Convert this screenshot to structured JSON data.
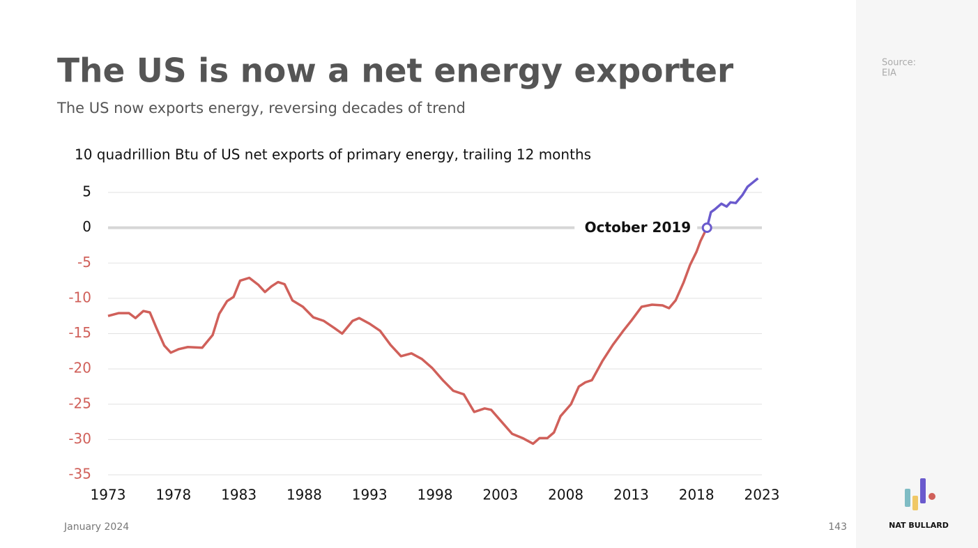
{
  "header": {
    "title": "The US is now a net energy exporter",
    "subtitle": "The US now exports energy, reversing decades of trend",
    "source_label": "Source:",
    "source": "EIA"
  },
  "footer": {
    "date": "January 2024",
    "page": "143",
    "brand": "NAT BULLARD"
  },
  "chart_data": {
    "type": "line",
    "title": "10 quadrillion Btu of US net exports of primary energy, trailing 12 months",
    "xlim": [
      1973,
      2023
    ],
    "xticks": [
      1973,
      1978,
      1983,
      1988,
      1993,
      1998,
      2003,
      2008,
      2013,
      2018,
      2023
    ],
    "ylim": [
      -35,
      5
    ],
    "yticks": [
      -35,
      -30,
      -25,
      -20,
      -15,
      -10,
      -5,
      0,
      5
    ],
    "grid": true,
    "negative_tick_color": "#d0605a",
    "series": [
      {
        "color": "#d0605a",
        "x": [
          1973,
          1973.8,
          1974.6,
          1975.1,
          1975.7,
          1976.2,
          1976.7,
          1977.3,
          1977.8,
          1978.4,
          1979.1,
          1980.2,
          1981,
          1981.5,
          1982.1,
          1982.6,
          1983.1,
          1983.8,
          1984.5,
          1985,
          1985.5,
          1986,
          1986.5,
          1987.1,
          1987.9,
          1988.7,
          1989.5,
          1990.3,
          1990.9,
          1991.7,
          1992.2,
          1993,
          1993.8,
          1994.6,
          1995.4,
          1996.2,
          1997,
          1997.8,
          1998.6,
          1999.4,
          2000.2,
          2001,
          2001.8,
          2002.3,
          2003.1,
          2003.9,
          2004.7,
          2005.5,
          2006,
          2006.6,
          2007.1,
          2007.6,
          2008.4,
          2009,
          2009.5,
          2010,
          2010.8,
          2011.6,
          2012.4,
          2013,
          2013.8,
          2014.6,
          2015.4,
          2015.9,
          2016.4,
          2017,
          2017.5,
          2018,
          2018.3,
          2018.8
        ],
        "values": [
          -12.5,
          -12.1,
          -12.1,
          -12.8,
          -11.8,
          -12,
          -14.2,
          -16.7,
          -17.7,
          -17.2,
          -16.9,
          -17,
          -15.2,
          -12.2,
          -10.4,
          -9.8,
          -7.5,
          -7.1,
          -8.1,
          -9.1,
          -8.3,
          -7.7,
          -8,
          -10.3,
          -11.2,
          -12.7,
          -13.2,
          -14.2,
          -15,
          -13.2,
          -12.8,
          -13.6,
          -14.6,
          -16.6,
          -18.2,
          -17.8,
          -18.6,
          -19.9,
          -21.6,
          -23.1,
          -23.6,
          -26.1,
          -25.6,
          -25.8,
          -27.5,
          -29.2,
          -29.8,
          -30.6,
          -29.8,
          -29.8,
          -29,
          -26.7,
          -25,
          -22.5,
          -21.9,
          -21.6,
          -18.9,
          -16.6,
          -14.6,
          -13.2,
          -11.2,
          -10.9,
          -11,
          -11.4,
          -10.3,
          -7.8,
          -5.3,
          -3.4,
          -1.9,
          0
        ]
      },
      {
        "color": "#6a5acd",
        "x": [
          2018.8,
          2019.1,
          2019.4,
          2019.9,
          2020.3,
          2020.6,
          2021,
          2021.5,
          2021.9,
          2022.3,
          2022.7
        ],
        "values": [
          0,
          2.2,
          2.6,
          3.4,
          3.0,
          3.6,
          3.5,
          4.6,
          5.8,
          6.4,
          7.0
        ]
      }
    ],
    "annotation": {
      "text": "October 2019",
      "x": 2018.8,
      "y": 0
    }
  }
}
